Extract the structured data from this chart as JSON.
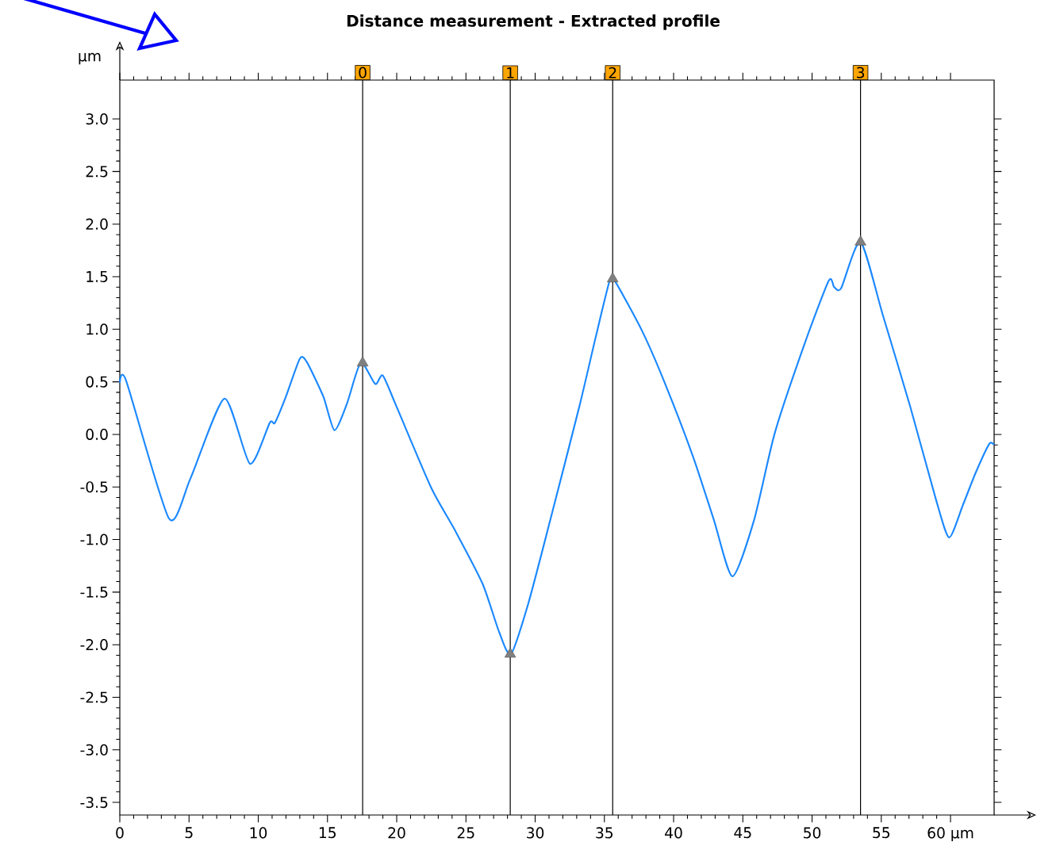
{
  "chart_data": {
    "type": "line",
    "title": "Distance measurement - Extracted profile",
    "ylabel": "µm",
    "xlim": [
      0,
      63.15
    ],
    "ylim": [
      -3.62,
      3.37
    ],
    "xticks": [
      0,
      5,
      10,
      15,
      20,
      25,
      30,
      35,
      40,
      45,
      50,
      55,
      {
        "value": 60,
        "label": "60 µm"
      }
    ],
    "yticks": [
      {
        "value": -3.5,
        "label": "-3.5"
      },
      {
        "value": -3,
        "label": "-3.0"
      },
      {
        "value": -2.5,
        "label": "-2.5"
      },
      {
        "value": -2,
        "label": "-2.0"
      },
      {
        "value": -1.5,
        "label": "-1.5"
      },
      {
        "value": -1,
        "label": "-1.0"
      },
      {
        "value": -0.5,
        "label": "-0.5"
      },
      {
        "value": 0,
        "label": "0.0"
      },
      {
        "value": 0.5,
        "label": "0.5"
      },
      {
        "value": 1,
        "label": "1.0"
      },
      {
        "value": 1.5,
        "label": "1.5"
      },
      {
        "value": 2,
        "label": "2.0"
      },
      {
        "value": 2.5,
        "label": "2.5"
      },
      {
        "value": 3,
        "label": "3.0"
      }
    ],
    "grid": false,
    "ref_lines": [
      {
        "axis": "x",
        "value": 17.54,
        "color": "#000000"
      },
      {
        "axis": "x",
        "value": 28.2,
        "color": "#000000"
      },
      {
        "axis": "x",
        "value": 35.6,
        "color": "#000000"
      },
      {
        "axis": "x",
        "value": 53.5,
        "color": "#000000"
      }
    ],
    "annotations": [
      {
        "text": "0",
        "x": 17.54,
        "y": 3.37
      },
      {
        "text": "1",
        "x": 28.2,
        "y": 3.37
      },
      {
        "text": "2",
        "x": 35.6,
        "y": 3.37
      },
      {
        "text": "3",
        "x": 53.5,
        "y": 3.37
      }
    ],
    "series": [
      {
        "color": "#1a88ff",
        "marker": "none",
        "line_style": "solid",
        "x": [
          0,
          0.46,
          3.55,
          5.1,
          7.56,
          9.4,
          10.83,
          11.2,
          12.0,
          13.0,
          13.5,
          14.7,
          15.5,
          16.4,
          17.4,
          18.45,
          19.0,
          20.0,
          22.5,
          24.2,
          26.2,
          27.4,
          28.25,
          29.5,
          31.1,
          33.2,
          34.4,
          35.4,
          35.8,
          37.7,
          39.3,
          41.4,
          42.9,
          44.25,
          45.8,
          47.3,
          49.4,
          51.2,
          51.6,
          52.1,
          53.5,
          55.1,
          57.1,
          58.95,
          59.9,
          60.9,
          61.8,
          62.8,
          63.15
        ],
        "values": [
          0.49,
          0.51,
          -0.8,
          -0.42,
          0.34,
          -0.28,
          0.11,
          0.11,
          0.36,
          0.72,
          0.69,
          0.36,
          0.04,
          0.29,
          0.68,
          0.48,
          0.56,
          0.26,
          -0.51,
          -0.91,
          -1.42,
          -1.88,
          -2.09,
          -1.61,
          -0.81,
          0.27,
          0.94,
          1.47,
          1.45,
          0.99,
          0.51,
          -0.21,
          -0.81,
          -1.35,
          -0.82,
          0.01,
          0.84,
          1.46,
          1.4,
          1.39,
          1.83,
          1.14,
          0.26,
          -0.62,
          -0.98,
          -0.67,
          -0.37,
          -0.09,
          -0.1
        ]
      },
      {
        "type": "scatter",
        "color": "#808080",
        "marker": "triangle",
        "x": [
          17.54,
          28.2,
          35.6,
          53.5
        ],
        "values": [
          0.68,
          -2.09,
          1.48,
          1.83
        ]
      }
    ]
  }
}
